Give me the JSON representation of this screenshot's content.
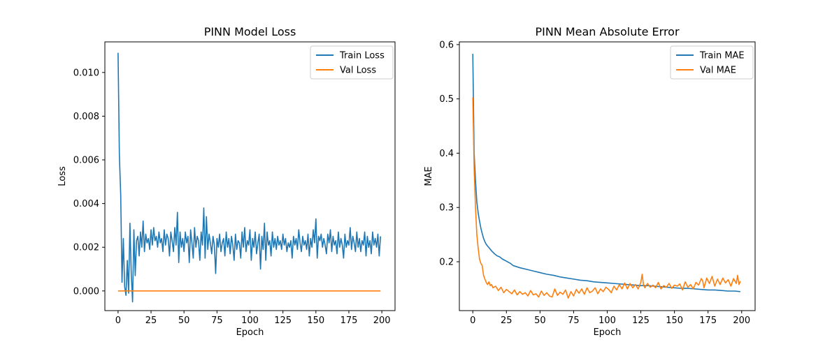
{
  "chart_data": [
    {
      "type": "line",
      "title": "PINN Model Loss",
      "xlabel": "Epoch",
      "ylabel": "Loss",
      "xlim": [
        -10,
        210
      ],
      "ylim": [
        -0.0009,
        0.0114
      ],
      "xticks": [
        0,
        25,
        50,
        75,
        100,
        125,
        150,
        175,
        200
      ],
      "yticks": [
        0.0,
        0.002,
        0.004,
        0.006,
        0.008,
        0.01
      ],
      "ytick_labels": [
        "0.000",
        "0.002",
        "0.004",
        "0.006",
        "0.008",
        "0.010"
      ],
      "grid": false,
      "legend_position": "top-right",
      "series": [
        {
          "name": "Train Loss",
          "color": "#1f77b4",
          "x": [
            0,
            1,
            2,
            3,
            4,
            5,
            6,
            7,
            8,
            9,
            10,
            11,
            12,
            13,
            14,
            15,
            16,
            17,
            18,
            19,
            20,
            21,
            22,
            23,
            24,
            25,
            26,
            27,
            28,
            29,
            30,
            31,
            32,
            33,
            34,
            35,
            36,
            37,
            38,
            39,
            40,
            41,
            42,
            43,
            44,
            45,
            46,
            47,
            48,
            49,
            50,
            51,
            52,
            53,
            54,
            55,
            56,
            57,
            58,
            59,
            60,
            61,
            62,
            63,
            64,
            65,
            66,
            67,
            68,
            69,
            70,
            71,
            72,
            73,
            74,
            75,
            76,
            77,
            78,
            79,
            80,
            81,
            82,
            83,
            84,
            85,
            86,
            87,
            88,
            89,
            90,
            91,
            92,
            93,
            94,
            95,
            96,
            97,
            98,
            99,
            100,
            101,
            102,
            103,
            104,
            105,
            106,
            107,
            108,
            109,
            110,
            111,
            112,
            113,
            114,
            115,
            116,
            117,
            118,
            119,
            120,
            121,
            122,
            123,
            124,
            125,
            126,
            127,
            128,
            129,
            130,
            131,
            132,
            133,
            134,
            135,
            136,
            137,
            138,
            139,
            140,
            141,
            142,
            143,
            144,
            145,
            146,
            147,
            148,
            149,
            150,
            151,
            152,
            153,
            154,
            155,
            156,
            157,
            158,
            159,
            160,
            161,
            162,
            163,
            164,
            165,
            166,
            167,
            168,
            169,
            170,
            171,
            172,
            173,
            174,
            175,
            176,
            177,
            178,
            179,
            180,
            181,
            182,
            183,
            184,
            185,
            186,
            187,
            188,
            189,
            190,
            191,
            192,
            193,
            194,
            195,
            196,
            197,
            198,
            199
          ],
          "values": [
            0.0109,
            0.0062,
            0.0044,
            0.0004,
            0.0024,
            0.0002,
            -0.0002,
            0.0014,
            -0.0001,
            0.0031,
            0.0008,
            -0.0005,
            0.0028,
            0.0007,
            0.0023,
            0.0025,
            0.0016,
            0.0027,
            0.002,
            0.0032,
            0.0018,
            0.0026,
            0.0022,
            0.0024,
            0.0019,
            0.0028,
            0.0021,
            0.0029,
            0.0023,
            0.0025,
            0.002,
            0.0027,
            0.0022,
            0.0024,
            0.0018,
            0.0028,
            0.0021,
            0.0026,
            0.0024,
            0.0016,
            0.0027,
            0.0023,
            0.0018,
            0.0029,
            0.0021,
            0.0036,
            0.0013,
            0.0027,
            0.002,
            0.0024,
            0.0018,
            0.0027,
            0.0022,
            0.0025,
            0.0013,
            0.0028,
            0.0022,
            0.0015,
            0.0029,
            0.002,
            0.0025,
            0.0023,
            0.0014,
            0.0027,
            0.0021,
            0.0038,
            0.0015,
            0.0034,
            0.0019,
            0.0026,
            0.0022,
            0.0017,
            0.0025,
            0.0021,
            0.0008,
            0.0024,
            0.002,
            0.0026,
            0.0018,
            0.0022,
            0.0024,
            0.0016,
            0.0027,
            0.002,
            0.0024,
            0.0017,
            0.0025,
            0.0021,
            0.0014,
            0.0026,
            0.0019,
            0.0023,
            0.0022,
            0.0015,
            0.0027,
            0.002,
            0.0029,
            0.0018,
            0.0023,
            0.0021,
            0.0028,
            0.0014,
            0.0024,
            0.002,
            0.0027,
            0.0017,
            0.0022,
            0.0026,
            0.001,
            0.0025,
            0.0019,
            0.0031,
            0.0014,
            0.0027,
            0.0021,
            0.0023,
            0.0016,
            0.0027,
            0.002,
            0.0024,
            0.0019,
            0.0025,
            0.0021,
            0.0023,
            0.0019,
            0.0026,
            0.0021,
            0.0024,
            0.0018,
            0.0022,
            0.002,
            0.0023,
            0.0015,
            0.0025,
            0.0021,
            0.0024,
            0.0019,
            0.0028,
            0.0022,
            0.0018,
            0.0025,
            0.0021,
            0.0023,
            0.0019,
            0.0026,
            0.0016,
            0.0024,
            0.002,
            0.0028,
            0.0022,
            0.0033,
            0.0015,
            0.0025,
            0.0023,
            0.0026,
            0.002,
            0.0024,
            0.0021,
            0.0017,
            0.0026,
            0.0022,
            0.0028,
            0.0018,
            0.0025,
            0.0021,
            0.0023,
            0.0017,
            0.0027,
            0.002,
            0.0024,
            0.0021,
            0.0015,
            0.0026,
            0.002,
            0.0023,
            0.0021,
            0.0029,
            0.0019,
            0.0025,
            0.0022,
            0.0018,
            0.0027,
            0.002,
            0.0024,
            0.0018,
            0.0023,
            0.0021,
            0.0027,
            0.0016,
            0.0025,
            0.002,
            0.0023,
            0.0017,
            0.0027,
            0.0021,
            0.0024,
            0.002,
            0.0026,
            0.0016,
            0.0025
          ]
        },
        {
          "name": "Val Loss",
          "color": "#ff7f0e",
          "x": [
            0,
            199
          ],
          "values": [
            0.0,
            0.0
          ]
        }
      ]
    },
    {
      "type": "line",
      "title": "PINN Mean Absolute Error",
      "xlabel": "Epoch",
      "ylabel": "MAE",
      "xlim": [
        -10,
        210
      ],
      "ylim": [
        0.11,
        0.605
      ],
      "xticks": [
        0,
        25,
        50,
        75,
        100,
        125,
        150,
        175,
        200
      ],
      "yticks": [
        0.2,
        0.3,
        0.4,
        0.5,
        0.6
      ],
      "ytick_labels": [
        "0.2",
        "0.3",
        "0.4",
        "0.5",
        "0.6"
      ],
      "grid": false,
      "legend_position": "top-right",
      "series": [
        {
          "name": "Train MAE",
          "color": "#1f77b4",
          "x": [
            0,
            1,
            2,
            3,
            4,
            5,
            6,
            7,
            8,
            9,
            10,
            12,
            14,
            16,
            18,
            20,
            22,
            25,
            28,
            30,
            35,
            40,
            45,
            50,
            55,
            60,
            65,
            70,
            75,
            80,
            85,
            90,
            95,
            100,
            105,
            110,
            115,
            120,
            125,
            130,
            135,
            140,
            145,
            150,
            155,
            160,
            165,
            170,
            175,
            180,
            185,
            190,
            195,
            199
          ],
          "values": [
            0.583,
            0.4,
            0.35,
            0.31,
            0.29,
            0.275,
            0.262,
            0.252,
            0.243,
            0.237,
            0.232,
            0.226,
            0.22,
            0.215,
            0.211,
            0.209,
            0.205,
            0.201,
            0.197,
            0.193,
            0.189,
            0.186,
            0.183,
            0.18,
            0.177,
            0.175,
            0.172,
            0.17,
            0.168,
            0.166,
            0.165,
            0.163,
            0.162,
            0.161,
            0.16,
            0.159,
            0.158,
            0.157,
            0.156,
            0.156,
            0.155,
            0.154,
            0.153,
            0.152,
            0.151,
            0.151,
            0.15,
            0.149,
            0.148,
            0.148,
            0.147,
            0.146,
            0.146,
            0.145
          ]
        },
        {
          "name": "Val MAE",
          "color": "#ff7f0e",
          "x": [
            0,
            1,
            2,
            3,
            4,
            5,
            6,
            7,
            8,
            9,
            10,
            11,
            12,
            13,
            14,
            15,
            17,
            19,
            21,
            23,
            25,
            27,
            29,
            31,
            33,
            35,
            37,
            39,
            41,
            43,
            45,
            47,
            49,
            51,
            53,
            55,
            57,
            59,
            61,
            63,
            65,
            67,
            69,
            71,
            73,
            75,
            77,
            79,
            81,
            83,
            85,
            87,
            89,
            91,
            93,
            95,
            97,
            99,
            101,
            103,
            105,
            107,
            109,
            111,
            113,
            115,
            117,
            119,
            121,
            123,
            125,
            126,
            127,
            128,
            130,
            132,
            134,
            136,
            138,
            140,
            142,
            144,
            146,
            148,
            150,
            152,
            154,
            156,
            158,
            160,
            162,
            164,
            166,
            168,
            170,
            171,
            172,
            174,
            176,
            178,
            180,
            182,
            184,
            186,
            188,
            190,
            192,
            194,
            196,
            197,
            198,
            199
          ],
          "values": [
            0.503,
            0.37,
            0.3,
            0.25,
            0.225,
            0.205,
            0.197,
            0.193,
            0.175,
            0.168,
            0.162,
            0.158,
            0.163,
            0.156,
            0.158,
            0.152,
            0.155,
            0.147,
            0.153,
            0.143,
            0.149,
            0.145,
            0.141,
            0.148,
            0.139,
            0.145,
            0.14,
            0.143,
            0.137,
            0.147,
            0.139,
            0.141,
            0.135,
            0.146,
            0.138,
            0.143,
            0.137,
            0.135,
            0.15,
            0.138,
            0.144,
            0.14,
            0.148,
            0.133,
            0.145,
            0.137,
            0.149,
            0.142,
            0.15,
            0.14,
            0.152,
            0.143,
            0.146,
            0.152,
            0.141,
            0.15,
            0.145,
            0.153,
            0.149,
            0.143,
            0.155,
            0.148,
            0.158,
            0.15,
            0.161,
            0.15,
            0.16,
            0.152,
            0.158,
            0.15,
            0.162,
            0.177,
            0.157,
            0.152,
            0.16,
            0.153,
            0.157,
            0.152,
            0.162,
            0.15,
            0.156,
            0.153,
            0.16,
            0.151,
            0.157,
            0.155,
            0.159,
            0.148,
            0.163,
            0.153,
            0.158,
            0.15,
            0.162,
            0.157,
            0.169,
            0.165,
            0.152,
            0.17,
            0.16,
            0.173,
            0.155,
            0.168,
            0.158,
            0.17,
            0.161,
            0.167,
            0.155,
            0.169,
            0.16,
            0.175,
            0.158,
            0.164
          ]
        }
      ]
    }
  ]
}
